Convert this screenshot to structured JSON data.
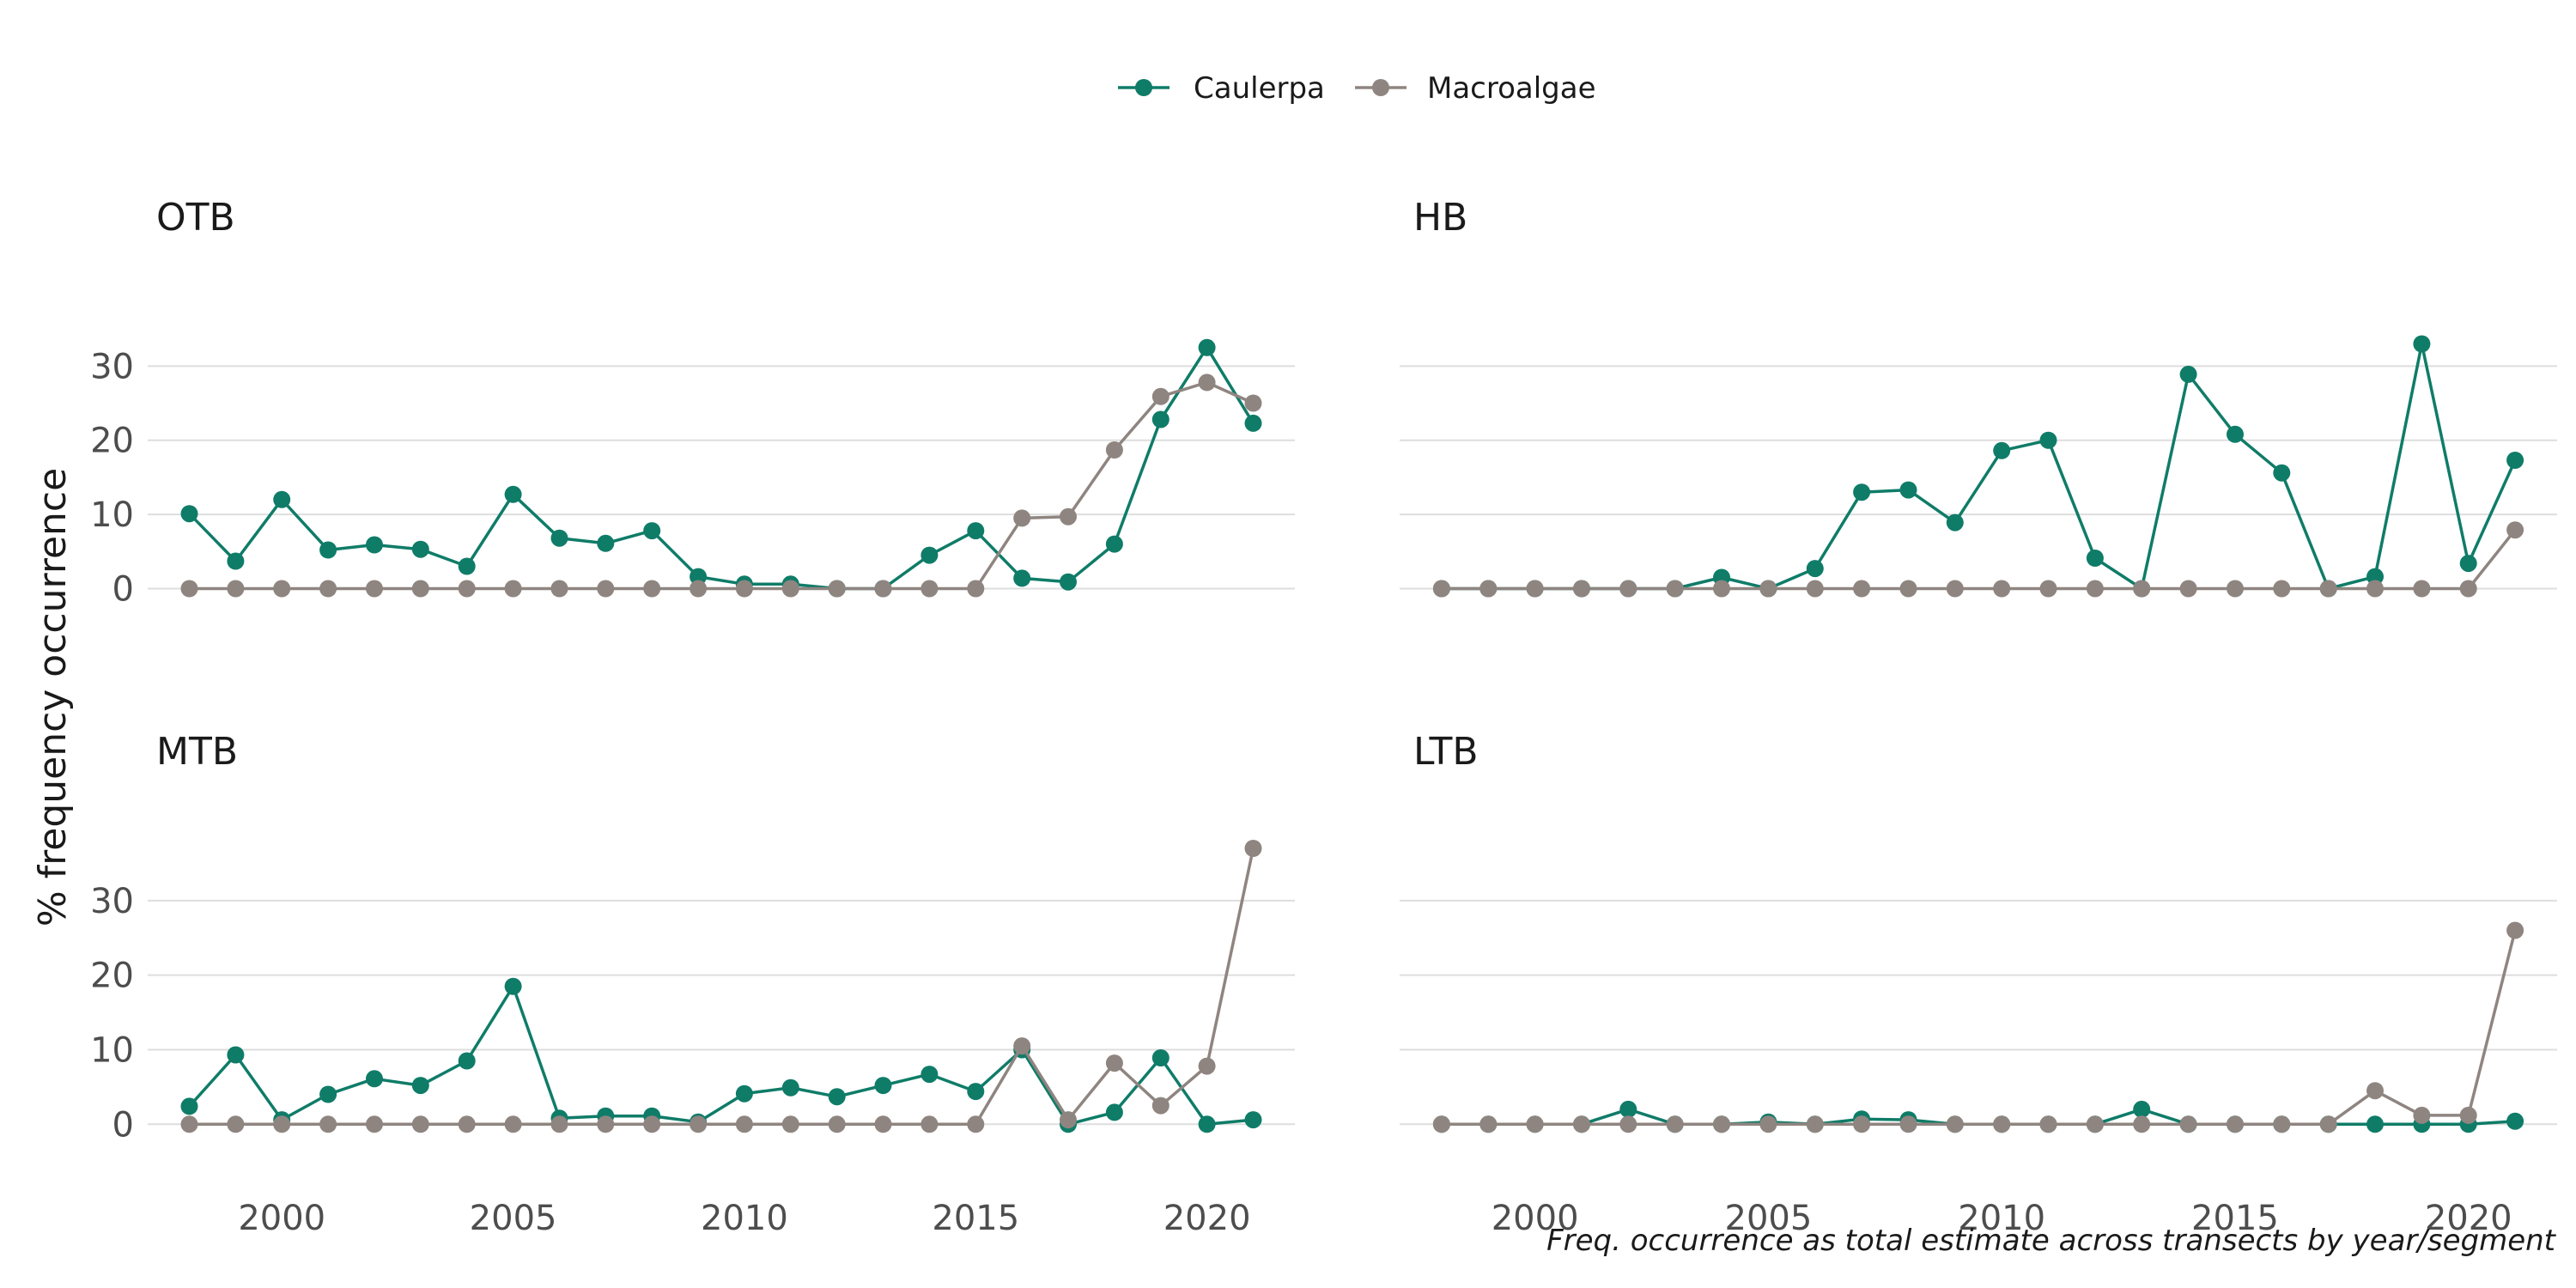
{
  "chart_data": {
    "type": "line",
    "ylabel": "% frequency occurrence",
    "caption": "Freq. occurrence as total estimate across transects by year/segment",
    "legend_position": "top",
    "grid": true,
    "colors": {
      "Caulerpa": "#0f7c68",
      "Macroalgae": "#8f8580"
    },
    "x": [
      1998,
      1999,
      2000,
      2001,
      2002,
      2003,
      2004,
      2005,
      2006,
      2007,
      2008,
      2009,
      2010,
      2011,
      2012,
      2013,
      2014,
      2015,
      2016,
      2017,
      2018,
      2019,
      2020,
      2021
    ],
    "xticks": [
      2000,
      2005,
      2010,
      2015,
      2020
    ],
    "yticks": [
      0,
      10,
      20,
      30
    ],
    "xlim": [
      1997.1,
      2021.9
    ],
    "ylim": [
      -4,
      40
    ],
    "series_names": [
      "Caulerpa",
      "Macroalgae"
    ],
    "panels": [
      {
        "title": "OTB",
        "series": [
          {
            "name": "Caulerpa",
            "values": [
              10.1,
              3.7,
              12.0,
              5.2,
              5.9,
              5.3,
              3.0,
              12.7,
              6.8,
              6.1,
              7.8,
              1.6,
              0.6,
              0.6,
              0.0,
              0.0,
              4.5,
              7.8,
              1.4,
              0.9,
              6.0,
              22.8,
              32.5,
              22.3
            ]
          },
          {
            "name": "Macroalgae",
            "values": [
              0,
              0,
              0,
              0,
              0,
              0,
              0,
              0,
              0,
              0,
              0,
              0,
              0,
              0,
              0,
              0,
              0,
              0,
              9.5,
              9.7,
              18.7,
              25.9,
              27.8,
              25.0
            ]
          }
        ]
      },
      {
        "title": "HB",
        "series": [
          {
            "name": "Caulerpa",
            "values": [
              0,
              0,
              0,
              0,
              0,
              0,
              1.5,
              0,
              2.7,
              13.0,
              13.3,
              8.9,
              18.6,
              20.0,
              4.1,
              0,
              28.9,
              20.8,
              15.6,
              0,
              1.6,
              33.0,
              3.4,
              17.3
            ]
          },
          {
            "name": "Macroalgae",
            "values": [
              0,
              0,
              0,
              0,
              0,
              0,
              0,
              0,
              0,
              0,
              0,
              0,
              0,
              0,
              0,
              0,
              0,
              0,
              0,
              0,
              0,
              0,
              0,
              7.9
            ]
          }
        ]
      },
      {
        "title": "MTB",
        "series": [
          {
            "name": "Caulerpa",
            "values": [
              2.4,
              9.3,
              0.6,
              4.0,
              6.1,
              5.2,
              8.5,
              18.5,
              0.8,
              1.1,
              1.1,
              0.3,
              4.1,
              4.9,
              3.7,
              5.2,
              6.7,
              4.4,
              10.0,
              0,
              1.6,
              8.9,
              0,
              0.6
            ]
          },
          {
            "name": "Macroalgae",
            "values": [
              0,
              0,
              0,
              0,
              0,
              0,
              0,
              0,
              0,
              0,
              0,
              0,
              0,
              0,
              0,
              0,
              0,
              0,
              10.5,
              0.6,
              8.2,
              2.5,
              7.8,
              37.0
            ]
          }
        ]
      },
      {
        "title": "LTB",
        "series": [
          {
            "name": "Caulerpa",
            "values": [
              0,
              0,
              0,
              0,
              2.0,
              0,
              0,
              0.3,
              0,
              0.7,
              0.6,
              0,
              0,
              0,
              0,
              2.0,
              0,
              0,
              0,
              0,
              0,
              0,
              0,
              0.4
            ]
          },
          {
            "name": "Macroalgae",
            "values": [
              0,
              0,
              0,
              0,
              0,
              0,
              0,
              0,
              0,
              0,
              0,
              0,
              0,
              0,
              0,
              0,
              0,
              0,
              0,
              0,
              4.5,
              1.2,
              1.2,
              26.0
            ]
          }
        ]
      }
    ]
  }
}
